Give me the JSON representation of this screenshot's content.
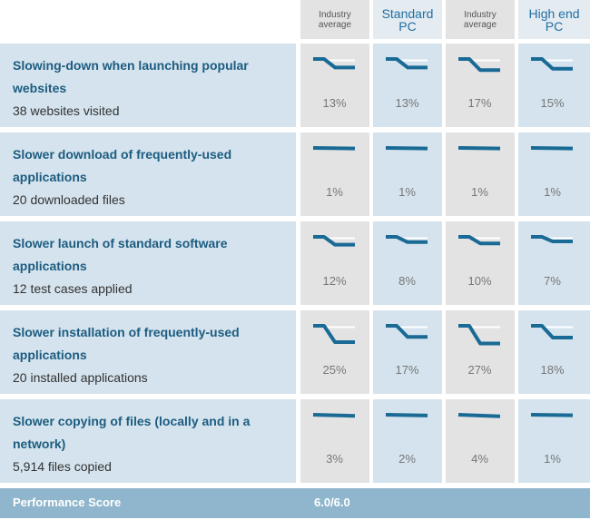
{
  "headers": [
    {
      "small": "Industry",
      "small2": "average",
      "big": "",
      "big2": ""
    },
    {
      "small": "",
      "small2": "",
      "big": "Standard",
      "big2": "PC"
    },
    {
      "small": "Industry",
      "small2": "average",
      "big": "",
      "big2": ""
    },
    {
      "small": "",
      "small2": "",
      "big": "High end",
      "big2": "PC"
    }
  ],
  "rows": [
    {
      "title1": "Slowing-down when launching popular",
      "title2": "websites",
      "sub": "38 websites visited",
      "values": [
        "13%",
        "13%",
        "17%",
        "15%"
      ],
      "pct": [
        13,
        13,
        17,
        15
      ]
    },
    {
      "title1": "Slower download of frequently-used",
      "title2": "applications",
      "sub": "20 downloaded files",
      "values": [
        "1%",
        "1%",
        "1%",
        "1%"
      ],
      "pct": [
        1,
        1,
        1,
        1
      ]
    },
    {
      "title1": "Slower launch of standard software",
      "title2": "applications",
      "sub": "12 test cases applied",
      "values": [
        "12%",
        "8%",
        "10%",
        "7%"
      ],
      "pct": [
        12,
        8,
        10,
        7
      ]
    },
    {
      "title1": "Slower installation of frequently-used",
      "title2": "applications",
      "sub": "20 installed applications",
      "values": [
        "25%",
        "17%",
        "27%",
        "18%"
      ],
      "pct": [
        25,
        17,
        27,
        18
      ]
    },
    {
      "title1": "Slower copying of files (locally and in a",
      "title2": "network)",
      "sub": "5,914 files copied",
      "values": [
        "3%",
        "2%",
        "4%",
        "1%"
      ],
      "pct": [
        3,
        2,
        4,
        1
      ]
    }
  ],
  "footer": {
    "label": "Performance Score",
    "score": "6.0/6.0"
  },
  "colors": {
    "line": "#1a6a96",
    "accent_title": "#1d5c80"
  }
}
